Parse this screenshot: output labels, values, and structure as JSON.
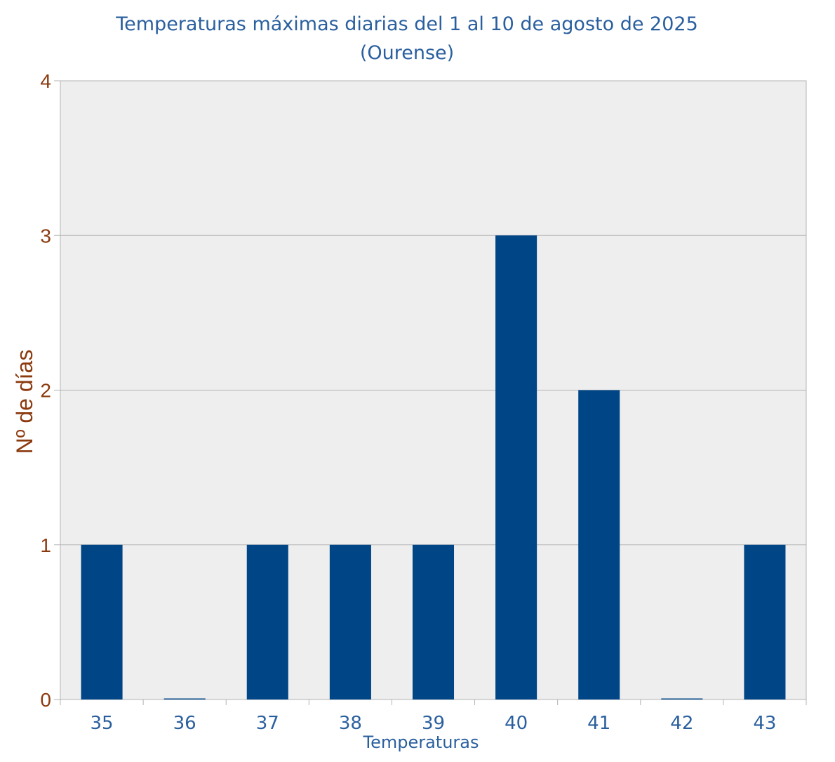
{
  "chart_data": {
    "type": "bar",
    "title": "Temperaturas máximas diarias del 1 al 10 de agosto de 2025",
    "subtitle": "(Ourense)",
    "xlabel": "Temperaturas",
    "ylabel": "Nº de días",
    "categories": [
      "35",
      "36",
      "37",
      "38",
      "39",
      "40",
      "41",
      "42",
      "43"
    ],
    "values": [
      1,
      0,
      1,
      1,
      1,
      3,
      2,
      0,
      1
    ],
    "ylim": [
      0,
      4
    ],
    "yticks": [
      "0",
      "1",
      "2",
      "3",
      "4"
    ],
    "grid": true,
    "legend": "none"
  },
  "colors": {
    "bar": "#004586",
    "plot_background": "#eeeeee",
    "grid": "#b3b3b3",
    "title": "#2a5f9e",
    "y_axis_text": "#8b3a0e"
  }
}
